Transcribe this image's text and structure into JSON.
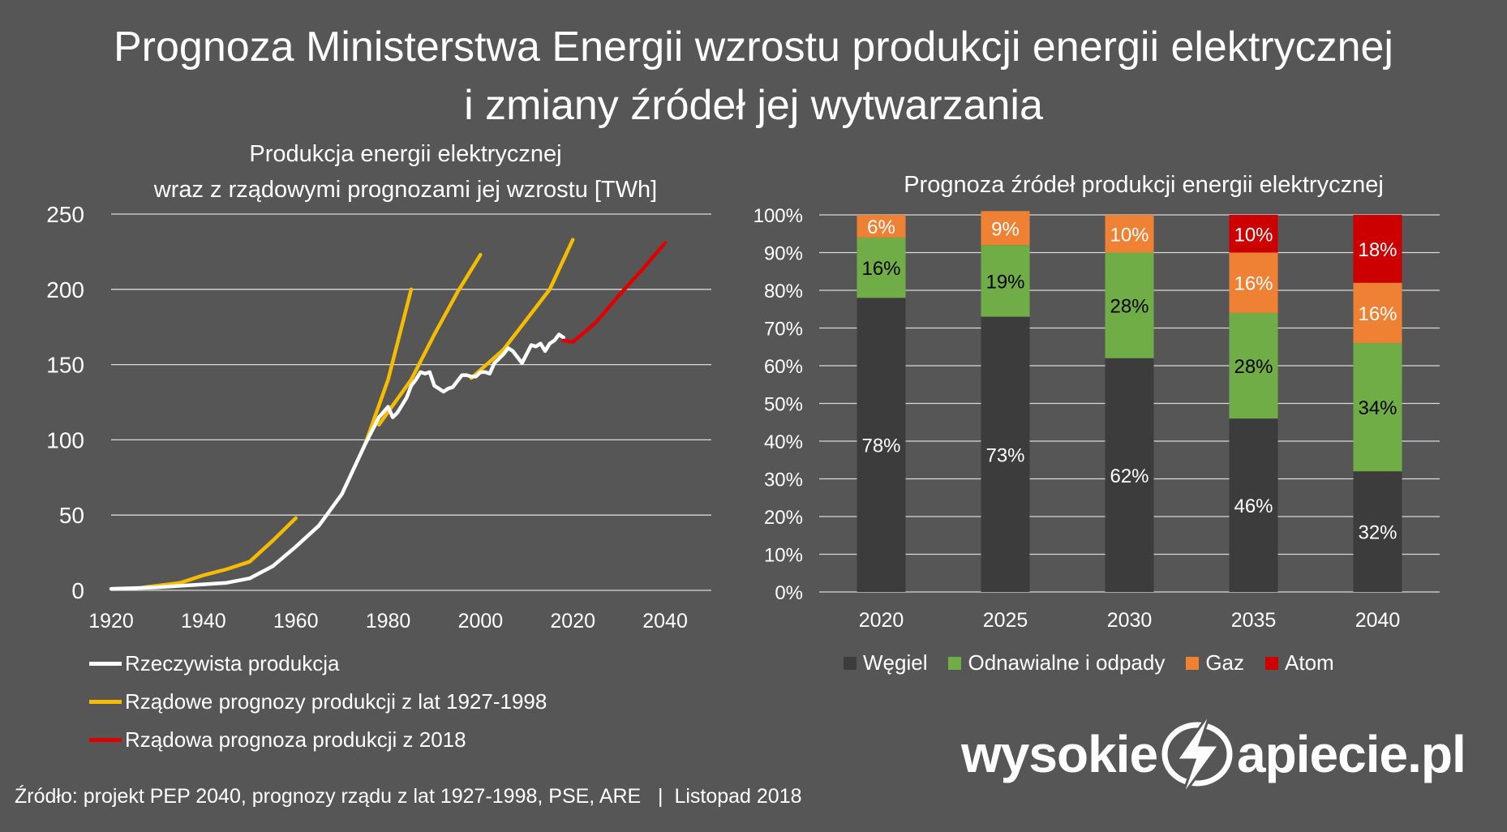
{
  "title": {
    "line1": "Prognoza Ministerstwa Energii wzrostu produkcji energii elektrycznej",
    "line2": "i zmiany źródeł jej wytwarzania"
  },
  "chart_data": [
    {
      "type": "line",
      "title_line1": "Produkcja energii elektrycznej",
      "title_line2": "wraz z rządowymi prognozami jej wzrostu [TWh]",
      "xlim": [
        1920,
        2050
      ],
      "ylim": [
        0,
        250
      ],
      "x_ticks": [
        "1920",
        "1940",
        "1960",
        "1980",
        "2000",
        "2020",
        "2040"
      ],
      "y_ticks": [
        "0",
        "50",
        "100",
        "150",
        "200",
        "250"
      ],
      "grid": true,
      "series": [
        {
          "name": "Rzeczywista produkcja",
          "color": "#ffffff",
          "points": [
            [
              1920,
              1
            ],
            [
              1925,
              1.5
            ],
            [
              1930,
              2
            ],
            [
              1935,
              3
            ],
            [
              1940,
              4
            ],
            [
              1945,
              5
            ],
            [
              1950,
              8
            ],
            [
              1955,
              16
            ],
            [
              1960,
              29
            ],
            [
              1965,
              43
            ],
            [
              1970,
              64
            ],
            [
              1975,
              97
            ],
            [
              1978,
              115
            ],
            [
              1980,
              122
            ],
            [
              1981,
              115
            ],
            [
              1982,
              118
            ],
            [
              1984,
              128
            ],
            [
              1985,
              136
            ],
            [
              1986,
              140
            ],
            [
              1987,
              145
            ],
            [
              1988,
              144
            ],
            [
              1989,
              145
            ],
            [
              1990,
              136
            ],
            [
              1991,
              134
            ],
            [
              1992,
              132
            ],
            [
              1993,
              134
            ],
            [
              1994,
              135
            ],
            [
              1995,
              139
            ],
            [
              1996,
              143
            ],
            [
              1997,
              143
            ],
            [
              1998,
              142
            ],
            [
              1999,
              142
            ],
            [
              2000,
              145
            ],
            [
              2001,
              145
            ],
            [
              2002,
              144
            ],
            [
              2003,
              151
            ],
            [
              2004,
              154
            ],
            [
              2005,
              157
            ],
            [
              2006,
              161
            ],
            [
              2007,
              159
            ],
            [
              2008,
              155
            ],
            [
              2009,
              151
            ],
            [
              2010,
              157
            ],
            [
              2011,
              163
            ],
            [
              2012,
              162
            ],
            [
              2013,
              164
            ],
            [
              2014,
              159
            ],
            [
              2015,
              164
            ],
            [
              2016,
              166
            ],
            [
              2017,
              170
            ],
            [
              2018,
              168
            ]
          ]
        },
        {
          "name": "Rządowe prognozy produkcji z lat 1927-1998",
          "color": "#f6bd00",
          "segments": [
            [
              [
                1927,
                2
              ],
              [
                1935,
                5
              ],
              [
                1940,
                10
              ],
              [
                1945,
                14
              ],
              [
                1950,
                19
              ],
              [
                1955,
                33
              ],
              [
                1960,
                48
              ]
            ],
            [
              [
                1975,
                97
              ],
              [
                1980,
                140
              ],
              [
                1985,
                200
              ]
            ],
            [
              [
                1978,
                110
              ],
              [
                1985,
                140
              ],
              [
                1990,
                170
              ],
              [
                1995,
                198
              ],
              [
                2000,
                223
              ]
            ],
            [
              [
                1998,
                141
              ],
              [
                2005,
                160
              ],
              [
                2010,
                180
              ],
              [
                2015,
                200
              ],
              [
                2020,
                233
              ]
            ]
          ]
        },
        {
          "name": "Rządowa prognoza produkcji z 2018",
          "color": "#e00000",
          "points": [
            [
              2018,
              166
            ],
            [
              2020,
              165
            ],
            [
              2025,
              178
            ],
            [
              2030,
              196
            ],
            [
              2035,
              213
            ],
            [
              2040,
              231
            ]
          ]
        }
      ]
    },
    {
      "type": "bar",
      "stacked": true,
      "title": "Prognoza źródeł produkcji energii elektrycznej",
      "categories": [
        "2020",
        "2025",
        "2030",
        "2035",
        "2040"
      ],
      "y_ticks": [
        "0%",
        "10%",
        "20%",
        "30%",
        "40%",
        "50%",
        "60%",
        "70%",
        "80%",
        "90%",
        "100%"
      ],
      "series": [
        {
          "name": "Węgiel",
          "color": "#3c3c3c",
          "values": [
            78,
            73,
            62,
            46,
            32
          ],
          "labels": [
            "78%",
            "73%",
            "62%",
            "46%",
            "32%"
          ]
        },
        {
          "name": "Odnawialne i odpady",
          "color": "#71ad47",
          "values": [
            16,
            19,
            28,
            28,
            34
          ],
          "labels": [
            "16%",
            "19%",
            "28%",
            "28%",
            "34%"
          ]
        },
        {
          "name": "Gaz",
          "color": "#ee8134",
          "values": [
            6,
            9,
            10,
            16,
            16
          ],
          "labels": [
            "6%",
            "9%",
            "10%",
            "16%",
            "16%"
          ]
        },
        {
          "name": "Atom",
          "color": "#cc0000",
          "values": [
            0,
            0,
            0,
            10,
            18
          ],
          "labels": [
            "",
            "",
            "",
            "10%",
            "18%"
          ]
        }
      ]
    }
  ],
  "legend_left": [
    {
      "label": "Rzeczywista produkcja",
      "color": "#ffffff"
    },
    {
      "label": "Rządowe prognozy produkcji z lat 1927-1998",
      "color": "#f6bd00"
    },
    {
      "label": "Rządowa prognoza produkcji z 2018",
      "color": "#e00000"
    }
  ],
  "legend_right": [
    {
      "label": "Węgiel",
      "color": "#3c3c3c"
    },
    {
      "label": "Odnawialne i odpady",
      "color": "#71ad47"
    },
    {
      "label": "Gaz",
      "color": "#ee8134"
    },
    {
      "label": "Atom",
      "color": "#cc0000"
    }
  ],
  "source": "Źródło: projekt PEP 2040, prognozy rządu z lat 1927-1998, PSE, ARE   |  Listopad 2018",
  "logo": {
    "left": "wysokie",
    "right": "apiecie.pl",
    "icon": "lightning-n-icon"
  }
}
